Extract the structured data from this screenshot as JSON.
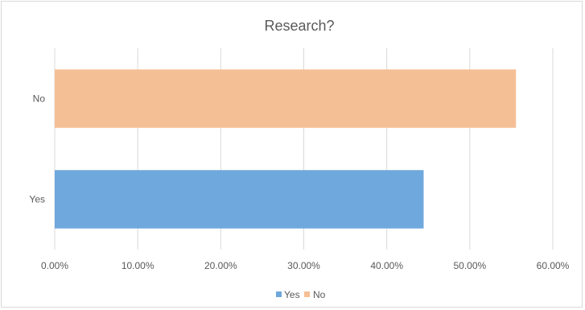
{
  "chart_data": {
    "type": "bar",
    "orientation": "horizontal",
    "title": "Research?",
    "categories": [
      "No",
      "Yes"
    ],
    "series": [
      {
        "name": "Yes",
        "category": "Yes",
        "value": 0.4444,
        "color": "#6fa8dc"
      },
      {
        "name": "No",
        "category": "No",
        "value": 0.5556,
        "color": "#f5bf95"
      }
    ],
    "xlim": [
      0,
      0.6
    ],
    "x_ticks": [
      "0.00%",
      "10.00%",
      "20.00%",
      "30.00%",
      "40.00%",
      "50.00%",
      "60.00%"
    ],
    "grid": true,
    "legend_placement": "bottom",
    "legend": [
      "Yes",
      "No"
    ]
  }
}
